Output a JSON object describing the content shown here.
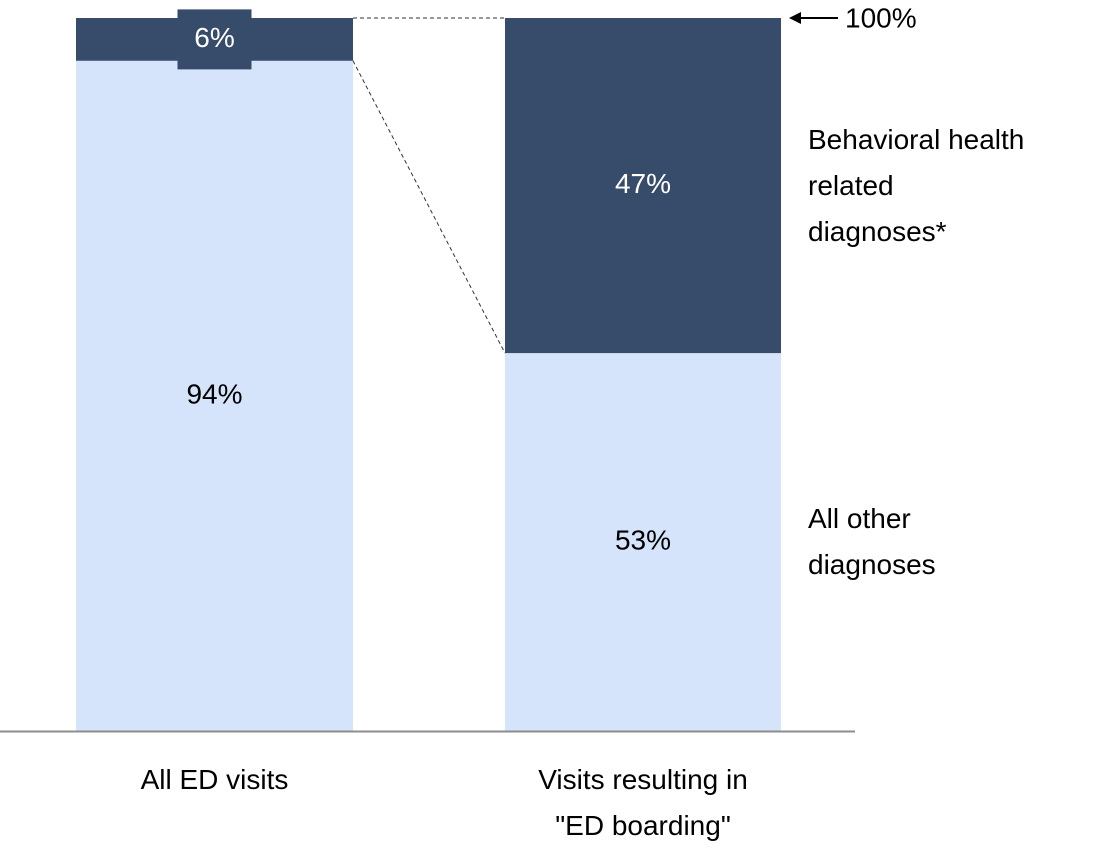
{
  "chart_data": {
    "type": "stacked_bar",
    "categories": [
      "All ED visits",
      "Visits resulting in\n\"ED boarding\""
    ],
    "series": [
      {
        "name": "All other\ndiagnoses",
        "color": "#d6e4fb",
        "label_color": "#000000",
        "values": [
          94,
          53
        ],
        "value_labels": [
          "94%",
          "53%"
        ]
      },
      {
        "name": "Behavioral health\nrelated\ndiagnoses*",
        "color": "#374c6b",
        "label_color": "#ffffff",
        "values": [
          6,
          47
        ],
        "value_labels": [
          "6%",
          "47%"
        ]
      }
    ],
    "ylim": [
      0,
      100
    ],
    "annotation": {
      "value": 100,
      "label": "100%"
    }
  }
}
